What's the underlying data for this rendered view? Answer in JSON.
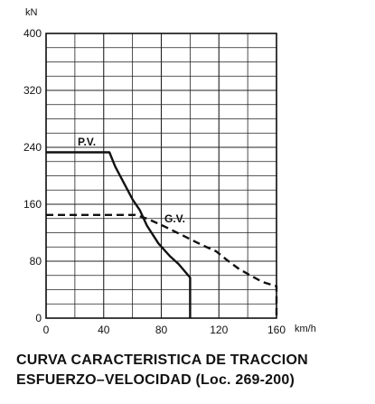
{
  "chart_data": {
    "type": "line",
    "title_lines": [
      "CURVA CARACTERISTICA DE TRACCION",
      "ESFUERZO–VELOCIDAD (Loc. 269-200)"
    ],
    "ylabel": "kN",
    "xlabel": "km/h",
    "xlim": [
      0,
      160
    ],
    "ylim": [
      0,
      400
    ],
    "x_ticks": [
      "0",
      "40",
      "80",
      "120",
      "160"
    ],
    "y_ticks": [
      "0",
      "80",
      "160",
      "240",
      "320",
      "400"
    ],
    "grid": true,
    "series": [
      {
        "name": "P.V.",
        "style": "solid",
        "points": [
          [
            0,
            233
          ],
          [
            44,
            233
          ],
          [
            48,
            213
          ],
          [
            54,
            190
          ],
          [
            60,
            167
          ],
          [
            65,
            152
          ],
          [
            70,
            130
          ],
          [
            78,
            105
          ],
          [
            86,
            87
          ],
          [
            92,
            76
          ],
          [
            100,
            57
          ],
          [
            100,
            0
          ]
        ]
      },
      {
        "name": "G.V.",
        "style": "dashed",
        "points": [
          [
            0,
            145
          ],
          [
            62,
            145
          ],
          [
            70,
            140
          ],
          [
            82,
            129
          ],
          [
            95,
            116
          ],
          [
            108,
            103
          ],
          [
            118,
            94
          ],
          [
            126,
            81
          ],
          [
            134,
            69
          ],
          [
            142,
            60
          ],
          [
            150,
            51
          ],
          [
            158,
            46
          ],
          [
            160,
            45
          ],
          [
            160,
            0
          ]
        ]
      }
    ],
    "colors": {
      "line": "#111111",
      "grid": "#222222"
    }
  }
}
